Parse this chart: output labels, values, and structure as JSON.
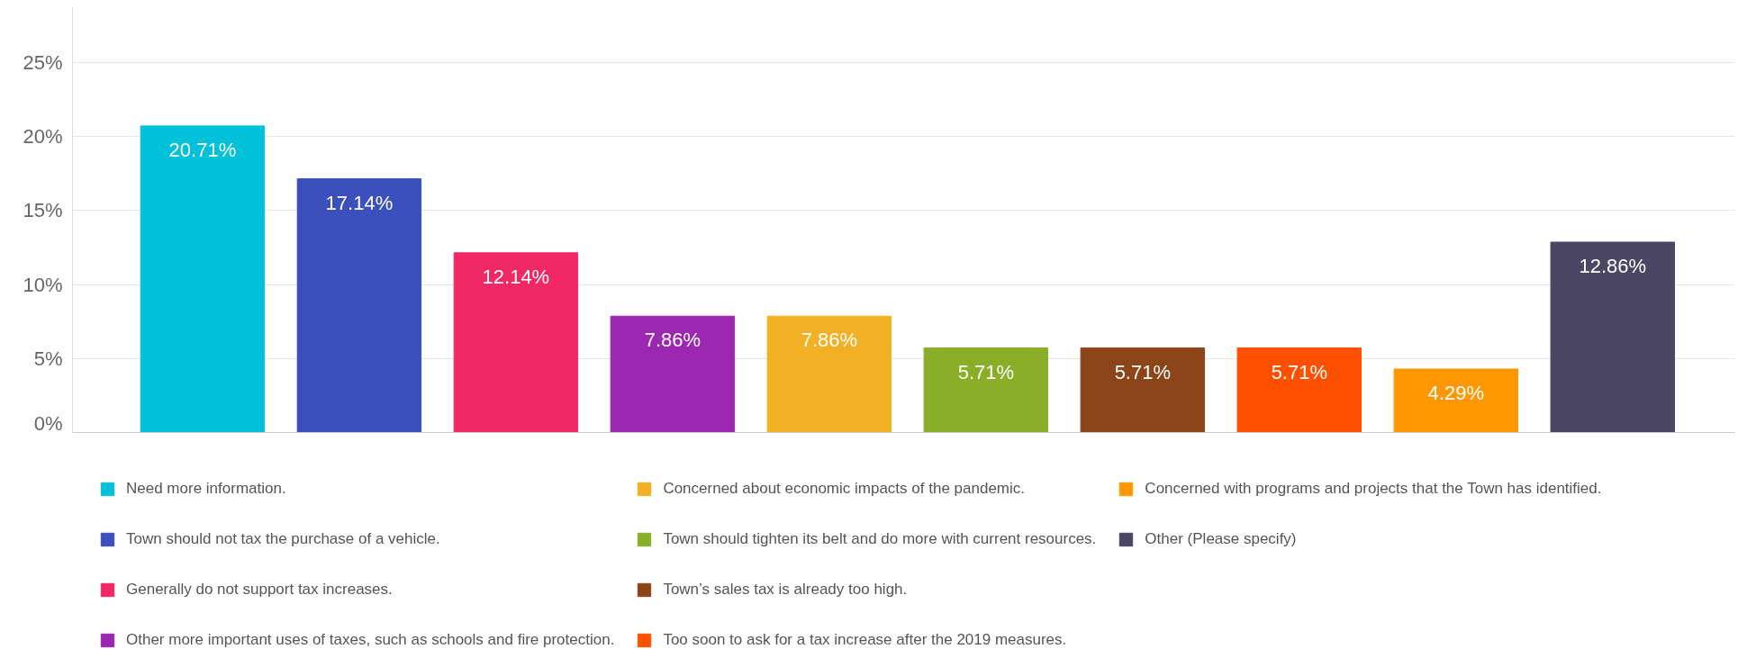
{
  "chart_data": {
    "type": "bar",
    "categories": [
      null,
      null,
      null,
      null,
      null,
      null,
      null,
      null,
      null,
      null
    ],
    "series": [
      {
        "name": "Need more information.",
        "color": "#00c1d9",
        "values": [
          20.71,
          null,
          null,
          null,
          null,
          null,
          null,
          null,
          null,
          null
        ],
        "value_labels": [
          "20.71%",
          null,
          null,
          null,
          null,
          null,
          null,
          null,
          null,
          null
        ]
      },
      {
        "name": "Town should not tax the purchase of a vehicle.",
        "color": "#3b50bd",
        "values": [
          null,
          17.14,
          null,
          null,
          null,
          null,
          null,
          null,
          null,
          null
        ],
        "value_labels": [
          null,
          "17.14%",
          null,
          null,
          null,
          null,
          null,
          null,
          null,
          null
        ]
      },
      {
        "name": "Generally do not support tax increases.",
        "color": "#f02863",
        "values": [
          null,
          null,
          12.14,
          null,
          null,
          null,
          null,
          null,
          null,
          null
        ],
        "value_labels": [
          null,
          null,
          "12.14%",
          null,
          null,
          null,
          null,
          null,
          null,
          null
        ]
      },
      {
        "name": "Other more important uses of taxes, such as schools and fire protection.",
        "color": "#9c27b0",
        "values": [
          null,
          null,
          null,
          7.86,
          null,
          null,
          null,
          null,
          null,
          null
        ],
        "value_labels": [
          null,
          null,
          null,
          "7.86%",
          null,
          null,
          null,
          null,
          null,
          null
        ]
      },
      {
        "name": "Concerned about economic impacts of the pandemic.",
        "color": "#f2b124",
        "values": [
          null,
          null,
          null,
          null,
          7.86,
          null,
          null,
          null,
          null,
          null
        ],
        "value_labels": [
          null,
          null,
          null,
          null,
          "7.86%",
          null,
          null,
          null,
          null,
          null
        ]
      },
      {
        "name": "Town should tighten its belt and do more with current resources.",
        "color": "#8bae28",
        "values": [
          null,
          null,
          null,
          null,
          null,
          5.71,
          null,
          null,
          null,
          null
        ],
        "value_labels": [
          null,
          null,
          null,
          null,
          null,
          "5.71%",
          null,
          null,
          null,
          null
        ]
      },
      {
        "name": "Town’s sales tax is already too high.",
        "color": "#8c4519",
        "values": [
          null,
          null,
          null,
          null,
          null,
          null,
          5.71,
          null,
          null,
          null
        ],
        "value_labels": [
          null,
          null,
          null,
          null,
          null,
          null,
          "5.71%",
          null,
          null,
          null
        ]
      },
      {
        "name": "Too soon to ask for a tax increase after the 2019 measures.",
        "color": "#ff5000",
        "values": [
          null,
          null,
          null,
          null,
          null,
          null,
          null,
          5.71,
          null,
          null
        ],
        "value_labels": [
          null,
          null,
          null,
          null,
          null,
          null,
          null,
          "5.71%",
          null,
          null
        ]
      },
      {
        "name": "Concerned with programs and projects that the Town has identified.",
        "color": "#ff9800",
        "values": [
          null,
          null,
          null,
          null,
          null,
          null,
          null,
          null,
          4.29,
          null
        ],
        "value_labels": [
          null,
          null,
          null,
          null,
          null,
          null,
          null,
          null,
          "4.29%",
          null
        ]
      },
      {
        "name": "Other (Please specify)",
        "color": "#4a4664",
        "values": [
          null,
          null,
          null,
          null,
          null,
          null,
          null,
          null,
          null,
          12.86
        ],
        "value_labels": [
          null,
          null,
          null,
          null,
          null,
          null,
          null,
          null,
          null,
          "12.86%"
        ]
      }
    ],
    "ylim": [
      0,
      28.7
    ],
    "yticks": [
      {
        "value": 0,
        "label": "0%"
      },
      {
        "value": 5,
        "label": "5%"
      },
      {
        "value": 10,
        "label": "10%"
      },
      {
        "value": 15,
        "label": "15%"
      },
      {
        "value": 20,
        "label": "20%"
      },
      {
        "value": 25,
        "label": "25%"
      }
    ],
    "grid": "y",
    "legend": "bottom",
    "tick_labels": "y"
  }
}
